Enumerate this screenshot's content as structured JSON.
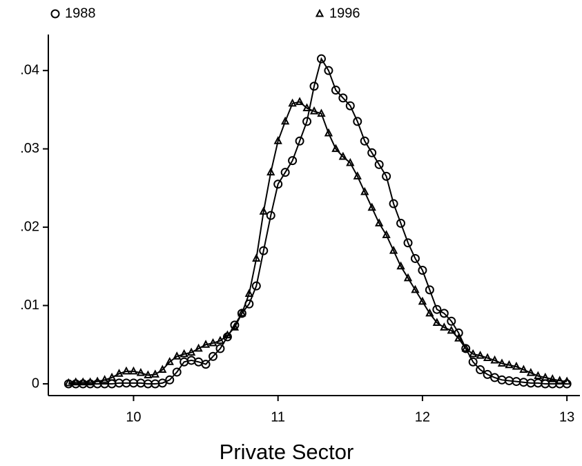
{
  "chart_data": {
    "type": "line",
    "xlabel": "Private Sector",
    "x": [
      9.55,
      9.6,
      9.65,
      9.7,
      9.75,
      9.8,
      9.85,
      9.9,
      9.95,
      10.0,
      10.05,
      10.1,
      10.15,
      10.2,
      10.25,
      10.3,
      10.35,
      10.4,
      10.45,
      10.5,
      10.55,
      10.6,
      10.65,
      10.7,
      10.75,
      10.8,
      10.85,
      10.9,
      10.95,
      11.0,
      11.05,
      11.1,
      11.15,
      11.2,
      11.25,
      11.3,
      11.35,
      11.4,
      11.45,
      11.5,
      11.55,
      11.6,
      11.65,
      11.7,
      11.75,
      11.8,
      11.85,
      11.9,
      11.95,
      12.0,
      12.05,
      12.1,
      12.15,
      12.2,
      12.25,
      12.3,
      12.35,
      12.4,
      12.45,
      12.5,
      12.55,
      12.6,
      12.65,
      12.7,
      12.75,
      12.8,
      12.85,
      12.9,
      12.95,
      13.0
    ],
    "series": [
      {
        "name": "1988",
        "marker": "circle",
        "color": "#000000",
        "values": [
          0,
          0,
          0,
          0,
          0,
          0,
          0,
          0.0001,
          0.0001,
          0.0001,
          0.0001,
          0,
          0,
          0.0001,
          0.0005,
          0.0015,
          0.0028,
          0.003,
          0.0028,
          0.0025,
          0.0035,
          0.0045,
          0.006,
          0.0075,
          0.009,
          0.0102,
          0.0125,
          0.017,
          0.0215,
          0.0255,
          0.027,
          0.0285,
          0.031,
          0.0335,
          0.038,
          0.0415,
          0.04,
          0.0375,
          0.0365,
          0.0355,
          0.0335,
          0.031,
          0.0295,
          0.028,
          0.0265,
          0.023,
          0.0205,
          0.018,
          0.016,
          0.0145,
          0.012,
          0.0095,
          0.009,
          0.008,
          0.0065,
          0.0045,
          0.0028,
          0.0018,
          0.0012,
          0.0008,
          0.0005,
          0.0004,
          0.0003,
          0.0002,
          0.0001,
          0.0001,
          0,
          0,
          0,
          0
        ]
      },
      {
        "name": "1996",
        "marker": "triangle",
        "color": "#000000",
        "values": [
          0.0001,
          0.0002,
          0.0002,
          0.0002,
          0.0003,
          0.0005,
          0.0008,
          0.0013,
          0.0016,
          0.0016,
          0.0014,
          0.0011,
          0.0012,
          0.0018,
          0.0028,
          0.0035,
          0.0038,
          0.004,
          0.0045,
          0.005,
          0.0052,
          0.0055,
          0.0062,
          0.0072,
          0.009,
          0.0115,
          0.016,
          0.022,
          0.027,
          0.031,
          0.0335,
          0.0358,
          0.036,
          0.0352,
          0.0348,
          0.0345,
          0.032,
          0.03,
          0.029,
          0.0282,
          0.0265,
          0.0245,
          0.0225,
          0.0205,
          0.019,
          0.017,
          0.015,
          0.0135,
          0.012,
          0.0105,
          0.009,
          0.0078,
          0.0072,
          0.0068,
          0.0058,
          0.0045,
          0.0038,
          0.0036,
          0.0033,
          0.003,
          0.0026,
          0.0024,
          0.0022,
          0.0018,
          0.0014,
          0.001,
          0.0008,
          0.0006,
          0.0004,
          0.0003
        ]
      }
    ],
    "xlim": [
      9.41,
      13.09
    ],
    "ylim": [
      -0.0015,
      0.0446
    ],
    "xticks": [
      10,
      11,
      12,
      13
    ],
    "yticks": [
      0,
      {
        "value": 0.01,
        "label": ".01"
      },
      {
        "value": 0.02,
        "label": ".02"
      },
      {
        "value": 0.03,
        "label": ".03"
      },
      {
        "value": 0.04,
        "label": ".04"
      }
    ],
    "legend": "top"
  }
}
